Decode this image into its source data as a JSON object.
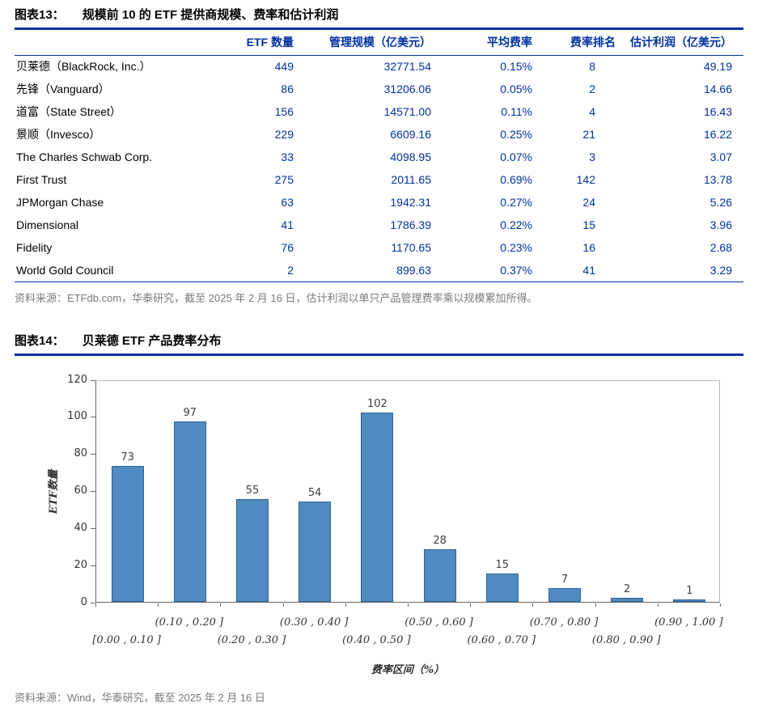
{
  "colors": {
    "rule_navy": "#0031A0",
    "table_text_navy": "#0031A0",
    "source_gray": "#7A7A7A",
    "bar_fill": "#4F8BC0",
    "bar_border": "#2F6399",
    "axis_text": "#333333"
  },
  "figure13": {
    "label": "图表13：",
    "title": "规模前 10 的 ETF 提供商规模、费率和估计利润",
    "columns": [
      "ETF 数量",
      "管理规模（亿美元）",
      "平均费率",
      "费率排名",
      "估计利润（亿美元）"
    ],
    "rows": [
      [
        "贝莱德（BlackRock, Inc.）",
        "449",
        "32771.54",
        "0.15%",
        "8",
        "49.19"
      ],
      [
        "先锋（Vanguard）",
        "86",
        "31206.06",
        "0.05%",
        "2",
        "14.66"
      ],
      [
        "道富（State Street）",
        "156",
        "14571.00",
        "0.11%",
        "4",
        "16.43"
      ],
      [
        "景顺（Invesco）",
        "229",
        "6609.16",
        "0.25%",
        "21",
        "16.22"
      ],
      [
        "The Charles Schwab Corp.",
        "33",
        "4098.95",
        "0.07%",
        "3",
        "3.07"
      ],
      [
        "First Trust",
        "275",
        "2011.65",
        "0.69%",
        "142",
        "13.78"
      ],
      [
        "JPMorgan Chase",
        "63",
        "1942.31",
        "0.27%",
        "24",
        "5.26"
      ],
      [
        "Dimensional",
        "41",
        "1786.39",
        "0.22%",
        "15",
        "3.96"
      ],
      [
        "Fidelity",
        "76",
        "1170.65",
        "0.23%",
        "16",
        "2.68"
      ],
      [
        "World Gold Council",
        "2",
        "899.63",
        "0.37%",
        "41",
        "3.29"
      ]
    ],
    "source": "资料来源：ETFdb.com，华泰研究，截至 2025 年 2 月 16 日，估计利润以单只产品管理费率乘以规模累加所得。"
  },
  "figure14": {
    "label": "图表14：",
    "title": "贝莱德 ETF 产品费率分布",
    "source": "资料来源：Wind，华泰研究，截至 2025 年 2 月 16 日"
  },
  "chart_data": {
    "type": "bar",
    "title": "贝莱德 ETF 产品费率分布",
    "categories": [
      "[0.00 , 0.10 ]",
      "(0.10 , 0.20 ]",
      "(0.20 , 0.30 ]",
      "(0.30 , 0.40 ]",
      "(0.40 , 0.50 ]",
      "(0.50 , 0.60 ]",
      "(0.60 , 0.70 ]",
      "(0.70 , 0.80 ]",
      "(0.80 , 0.90 ]",
      "(0.90 , 1.00 ]"
    ],
    "values": [
      73,
      97,
      55,
      54,
      102,
      28,
      15,
      7,
      2,
      1
    ],
    "xlabel": "费率区间（%）",
    "ylabel": "ETF数量",
    "ylim": [
      0,
      120
    ],
    "yticks": [
      0,
      20,
      40,
      60,
      80,
      100,
      120
    ],
    "grid": false,
    "legend": false
  }
}
